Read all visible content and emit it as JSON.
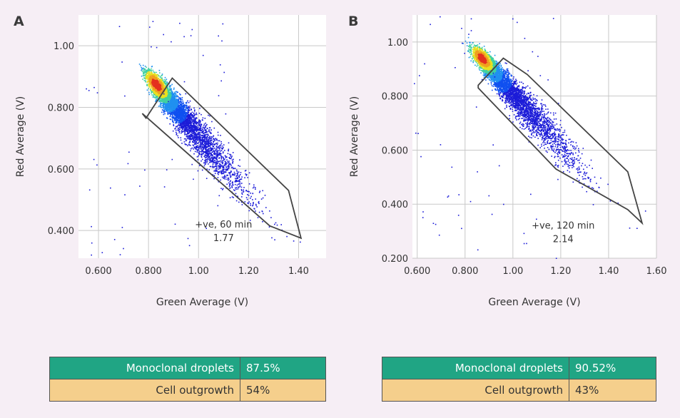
{
  "colors": {
    "background": "#f6eef5",
    "table_green": "#20a584",
    "table_orange": "#f5cf8c",
    "grid": "#c8c8c8",
    "gate": "#444444"
  },
  "chart_data": [
    {
      "panel": "A",
      "type": "scatter",
      "subtype": "density-scatter",
      "xlabel": "Green Average (V)",
      "ylabel": "Red Average (V)",
      "xlim": [
        0.52,
        1.51
      ],
      "ylim": [
        0.31,
        1.1
      ],
      "xticks": [
        0.6,
        0.8,
        1.0,
        1.2,
        1.4
      ],
      "xtick_labels": [
        "0.600",
        "0.800",
        "1.00",
        "1.20",
        "1.40"
      ],
      "yticks": [
        0.4,
        0.6,
        0.8,
        1.0
      ],
      "ytick_labels": [
        "0.400",
        "0.600",
        "0.800",
        "1.00"
      ],
      "density_peak": [
        0.83,
        0.875
      ],
      "density_spread_diag": [
        0.06,
        0.21
      ],
      "gate_polygon": [
        [
          0.79,
          0.765
        ],
        [
          0.895,
          0.895
        ],
        [
          1.36,
          0.53
        ],
        [
          1.41,
          0.375
        ],
        [
          1.285,
          0.415
        ],
        [
          0.775,
          0.78
        ]
      ],
      "annotation": [
        "+ve, 60 min",
        "1.77"
      ],
      "annotation_position": [
        1.1,
        0.41
      ]
    },
    {
      "panel": "B",
      "type": "scatter",
      "subtype": "density-scatter",
      "xlabel": "Green Average (V)",
      "ylabel": "Red Average (V)",
      "xlim": [
        0.58,
        1.6
      ],
      "ylim": [
        0.2,
        1.1
      ],
      "xticks": [
        0.6,
        0.8,
        1.0,
        1.2,
        1.4,
        1.6
      ],
      "xtick_labels": [
        "0.600",
        "0.800",
        "1.00",
        "1.20",
        "1.40",
        "1.60"
      ],
      "yticks": [
        0.2,
        0.4,
        0.6,
        0.8,
        1.0
      ],
      "ytick_labels": [
        "0.200",
        "0.400",
        "0.600",
        "0.800",
        "1.00"
      ],
      "density_peak": [
        0.87,
        0.94
      ],
      "density_spread_diag": [
        0.06,
        0.24
      ],
      "gate_polygon": [
        [
          0.855,
          0.84
        ],
        [
          0.96,
          0.94
        ],
        [
          1.06,
          0.88
        ],
        [
          1.48,
          0.52
        ],
        [
          1.54,
          0.33
        ],
        [
          1.48,
          0.38
        ],
        [
          1.18,
          0.53
        ],
        [
          0.855,
          0.83
        ]
      ],
      "annotation": [
        "+ve, 120 min",
        "2.14"
      ],
      "annotation_position": [
        1.21,
        0.31
      ]
    }
  ],
  "panels": {
    "a": {
      "letter": "A",
      "table": [
        {
          "label": "Monoclonal droplets",
          "value": "87.5%"
        },
        {
          "label": "Cell outgrowth",
          "value": "54%"
        }
      ]
    },
    "b": {
      "letter": "B",
      "table": [
        {
          "label": "Monoclonal droplets",
          "value": "90.52%"
        },
        {
          "label": "Cell outgrowth",
          "value": "43%"
        }
      ]
    }
  }
}
